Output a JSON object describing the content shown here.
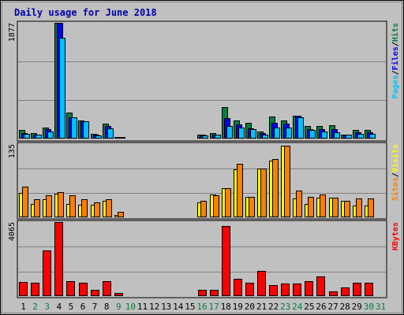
{
  "colors": {
    "background": "#c0c0c0",
    "plot_bg": "#c0c0c0",
    "grid": "#808080",
    "title": "#0000aa",
    "hits": "#008040",
    "files": "#0000ff",
    "pages": "#00c0ff",
    "visits": "#ffff00",
    "sites": "#ff8000",
    "kbytes": "#ff0000",
    "weekend_label": "#008040",
    "weekday_label": "#000000"
  },
  "chart_data": {
    "type": "bar",
    "title": "Daily usage for June 2018",
    "days": [
      "1",
      "2",
      "3",
      "4",
      "5",
      "6",
      "7",
      "8",
      "9",
      "10",
      "11",
      "12",
      "13",
      "14",
      "15",
      "16",
      "17",
      "18",
      "19",
      "20",
      "21",
      "22",
      "23",
      "24",
      "25",
      "26",
      "27",
      "28",
      "29",
      "30",
      "31"
    ],
    "weekend_days": [
      "2",
      "3",
      "9",
      "10",
      "16",
      "17",
      "23",
      "24",
      "30",
      "31"
    ],
    "panels": [
      {
        "id": "top",
        "ymax_label": "1877",
        "ymax": 1877,
        "legend": [
          {
            "label": "Pages",
            "color": "#00c0ff"
          },
          {
            "label": "Files",
            "color": "#0000ff"
          },
          {
            "label": "Hits",
            "color": "#008040"
          }
        ],
        "series": [
          {
            "name": "Hits",
            "color": "#008040",
            "values": [
              145,
              85,
              180,
              1877,
              420,
              300,
              80,
              240,
              30,
              0,
              0,
              0,
              0,
              0,
              0,
              70,
              85,
              510,
              300,
              250,
              120,
              360,
              300,
              370,
              200,
              200,
              220,
              70,
              140,
              140,
              0
            ]
          },
          {
            "name": "Files",
            "color": "#0000ff",
            "values": [
              90,
              70,
              150,
              1877,
              340,
              280,
              60,
              200,
              20,
              0,
              0,
              0,
              0,
              0,
              0,
              60,
              70,
              330,
              230,
              160,
              90,
              260,
              240,
              370,
              150,
              150,
              150,
              60,
              100,
              100,
              0
            ]
          },
          {
            "name": "Pages",
            "color": "#00c0ff",
            "values": [
              80,
              60,
              120,
              1640,
              340,
              280,
              50,
              170,
              20,
              0,
              0,
              0,
              0,
              0,
              0,
              50,
              60,
              210,
              180,
              150,
              70,
              180,
              180,
              340,
              140,
              120,
              100,
              60,
              80,
              80,
              0
            ]
          }
        ]
      },
      {
        "id": "middle",
        "ymax_label": "135",
        "ymax": 135,
        "legend": [
          {
            "label": "Sites",
            "color": "#ff8000"
          },
          {
            "label": "Visits",
            "color": "#ffff00"
          }
        ],
        "series": [
          {
            "name": "Visits",
            "color": "#ffff00",
            "values": [
              45,
              25,
              33,
              43,
              25,
              23,
              23,
              31,
              5,
              0,
              0,
              0,
              0,
              0,
              0,
              27,
              42,
              53,
              88,
              38,
              90,
              105,
              132,
              35,
              25,
              37,
              37,
              30,
              22,
              22,
              0
            ]
          },
          {
            "name": "Sites",
            "color": "#ff8000",
            "values": [
              56,
              33,
              40,
              46,
              41,
              33,
              27,
              33,
              10,
              0,
              0,
              0,
              0,
              0,
              0,
              30,
              40,
              53,
              98,
              38,
              90,
              107,
              132,
              50,
              38,
              42,
              37,
              30,
              35,
              35,
              0
            ]
          }
        ]
      },
      {
        "id": "bottom",
        "ymax_label": "4065",
        "ymax": 4065,
        "legend": [
          {
            "label": "KBytes",
            "color": "#ff0000"
          }
        ],
        "series": [
          {
            "name": "KBytes",
            "color": "#ff0000",
            "values": [
              780,
              720,
              2520,
              4065,
              830,
              740,
              340,
              830,
              160,
              0,
              0,
              0,
              0,
              0,
              0,
              330,
              330,
              3860,
              930,
              740,
              1370,
              600,
              690,
              710,
              810,
              1060,
              260,
              480,
              750,
              750,
              0
            ]
          }
        ]
      }
    ]
  }
}
